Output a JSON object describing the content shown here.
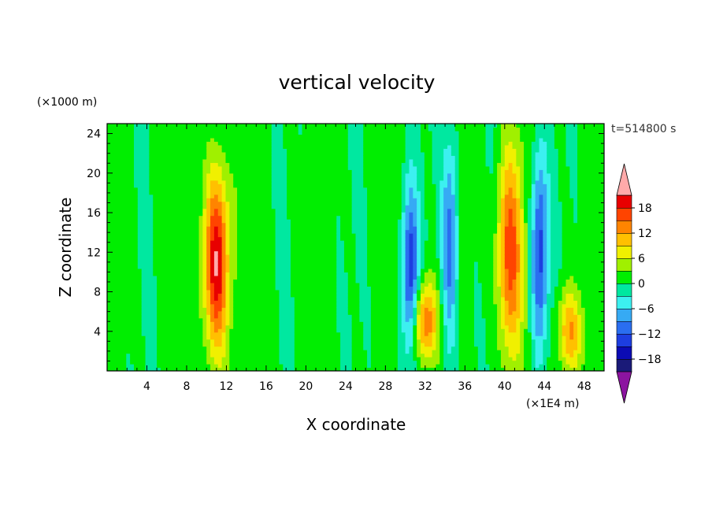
{
  "chart_data": {
    "type": "heatmap",
    "title": "vertical velocity",
    "xlabel": "X coordinate",
    "ylabel": "Z coordinate",
    "x_unit": "(×1E4 m)",
    "y_unit": "(×1000 m)",
    "time_label": "t=514800 s",
    "xlim": [
      0,
      50
    ],
    "ylim": [
      0,
      25
    ],
    "x_ticks": [
      4,
      8,
      12,
      16,
      20,
      24,
      28,
      32,
      36,
      40,
      44,
      48
    ],
    "y_ticks": [
      4,
      8,
      12,
      16,
      20,
      24
    ],
    "colorbar": {
      "levels": [
        -21,
        -18,
        -15,
        -12,
        -9,
        -6,
        -3,
        0,
        3,
        6,
        9,
        12,
        15,
        18,
        21
      ],
      "tick_labels": [
        -18,
        -12,
        -6,
        0,
        6,
        12,
        18
      ],
      "colors": [
        "#5a1a8c",
        "#1a1a78",
        "#0b0bb4",
        "#1d3ee0",
        "#2a6ef0",
        "#36aaf4",
        "#3cf0f0",
        "#00e8a0",
        "#00ee00",
        "#a0f000",
        "#f0f000",
        "#ffc000",
        "#ff8400",
        "#ff4400",
        "#e80000",
        "#ffaaaa"
      ],
      "under_color": "#8c14a0",
      "over_color": "#ffaaaa"
    },
    "features": [
      {
        "kind": "updraft",
        "x": 11,
        "z_peak": 11,
        "w_max": 21
      },
      {
        "kind": "downdraft",
        "x": 30.5,
        "z_peak": 10,
        "w_min": -15
      },
      {
        "kind": "updraft",
        "x": 32,
        "z_peak": 5,
        "w_max": 15
      },
      {
        "kind": "downdraft",
        "x": 34.5,
        "z_peak": 13,
        "w_min": -12
      },
      {
        "kind": "updraft",
        "x": 40.5,
        "z_peak": 12,
        "w_max": 16
      },
      {
        "kind": "downdraft",
        "x": 43.5,
        "z_peak": 12,
        "w_min": -15
      },
      {
        "kind": "updraft",
        "x": 46.5,
        "z_peak": 4,
        "w_max": 12
      }
    ]
  }
}
